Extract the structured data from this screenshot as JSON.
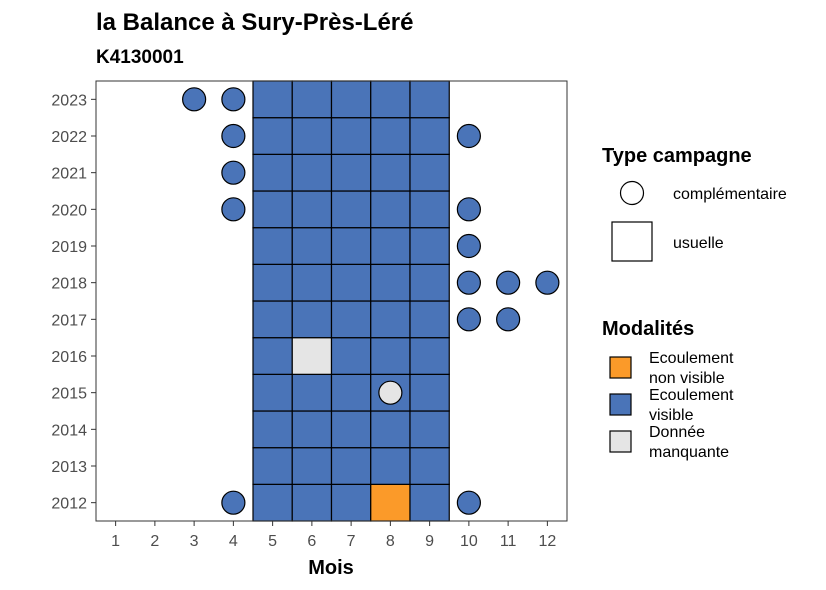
{
  "chart_data": {
    "type": "heatmap",
    "title": "la Balance à Sury-Près-Léré",
    "subtitle": "K4130001",
    "xlabel": "Mois",
    "ylabel": "",
    "x_ticks": [
      1,
      2,
      3,
      4,
      5,
      6,
      7,
      8,
      9,
      10,
      11,
      12
    ],
    "y_ticks": [
      2012,
      2013,
      2014,
      2015,
      2016,
      2017,
      2018,
      2019,
      2020,
      2021,
      2022,
      2023
    ],
    "xlim": [
      0.5,
      12.5
    ],
    "ylim": [
      2011.5,
      2023.5
    ],
    "grid": false,
    "colors": {
      "Ecoulement non visible": "#fb9a29",
      "Ecoulement visible": "#4a74b8",
      "Donnée manquante": "#e5e5e5"
    },
    "legend": {
      "placement": "right",
      "campaign_title": "Type campagne",
      "campaign_types": [
        {
          "label": "complémentaire",
          "shape": "circle"
        },
        {
          "label": "usuelle",
          "shape": "square"
        }
      ],
      "modalities_title": "Modalités",
      "modalities": [
        {
          "key": "Ecoulement non visible",
          "lines": [
            "Ecoulement",
            "non visible"
          ],
          "color": "#fb9a29"
        },
        {
          "key": "Ecoulement visible",
          "lines": [
            "Ecoulement",
            "visible"
          ],
          "color": "#4a74b8"
        },
        {
          "key": "Donnée manquante",
          "lines": [
            "Donnée",
            "manquante"
          ],
          "color": "#e5e5e5"
        }
      ]
    },
    "usual_months": [
      5,
      6,
      7,
      8,
      9
    ],
    "usual_years": [
      2012,
      2013,
      2014,
      2015,
      2016,
      2017,
      2018,
      2019,
      2020,
      2021,
      2022,
      2023
    ],
    "usual_exceptions": [
      {
        "year": 2016,
        "month": 6,
        "modality": "Donnée manquante"
      },
      {
        "year": 2012,
        "month": 8,
        "modality": "Ecoulement non visible"
      }
    ],
    "default_modality": "Ecoulement visible",
    "complementary": [
      {
        "year": 2023,
        "month": 3,
        "modality": "Ecoulement visible"
      },
      {
        "year": 2023,
        "month": 4,
        "modality": "Ecoulement visible"
      },
      {
        "year": 2022,
        "month": 4,
        "modality": "Ecoulement visible"
      },
      {
        "year": 2022,
        "month": 10,
        "modality": "Ecoulement visible"
      },
      {
        "year": 2021,
        "month": 4,
        "modality": "Ecoulement visible"
      },
      {
        "year": 2020,
        "month": 4,
        "modality": "Ecoulement visible"
      },
      {
        "year": 2020,
        "month": 10,
        "modality": "Ecoulement visible"
      },
      {
        "year": 2019,
        "month": 10,
        "modality": "Ecoulement visible"
      },
      {
        "year": 2018,
        "month": 10,
        "modality": "Ecoulement visible"
      },
      {
        "year": 2018,
        "month": 11,
        "modality": "Ecoulement visible"
      },
      {
        "year": 2018,
        "month": 12,
        "modality": "Ecoulement visible"
      },
      {
        "year": 2017,
        "month": 10,
        "modality": "Ecoulement visible"
      },
      {
        "year": 2017,
        "month": 11,
        "modality": "Ecoulement visible"
      },
      {
        "year": 2015,
        "month": 8,
        "modality": "Donnée manquante"
      },
      {
        "year": 2012,
        "month": 4,
        "modality": "Ecoulement visible"
      },
      {
        "year": 2012,
        "month": 10,
        "modality": "Ecoulement visible"
      }
    ]
  }
}
